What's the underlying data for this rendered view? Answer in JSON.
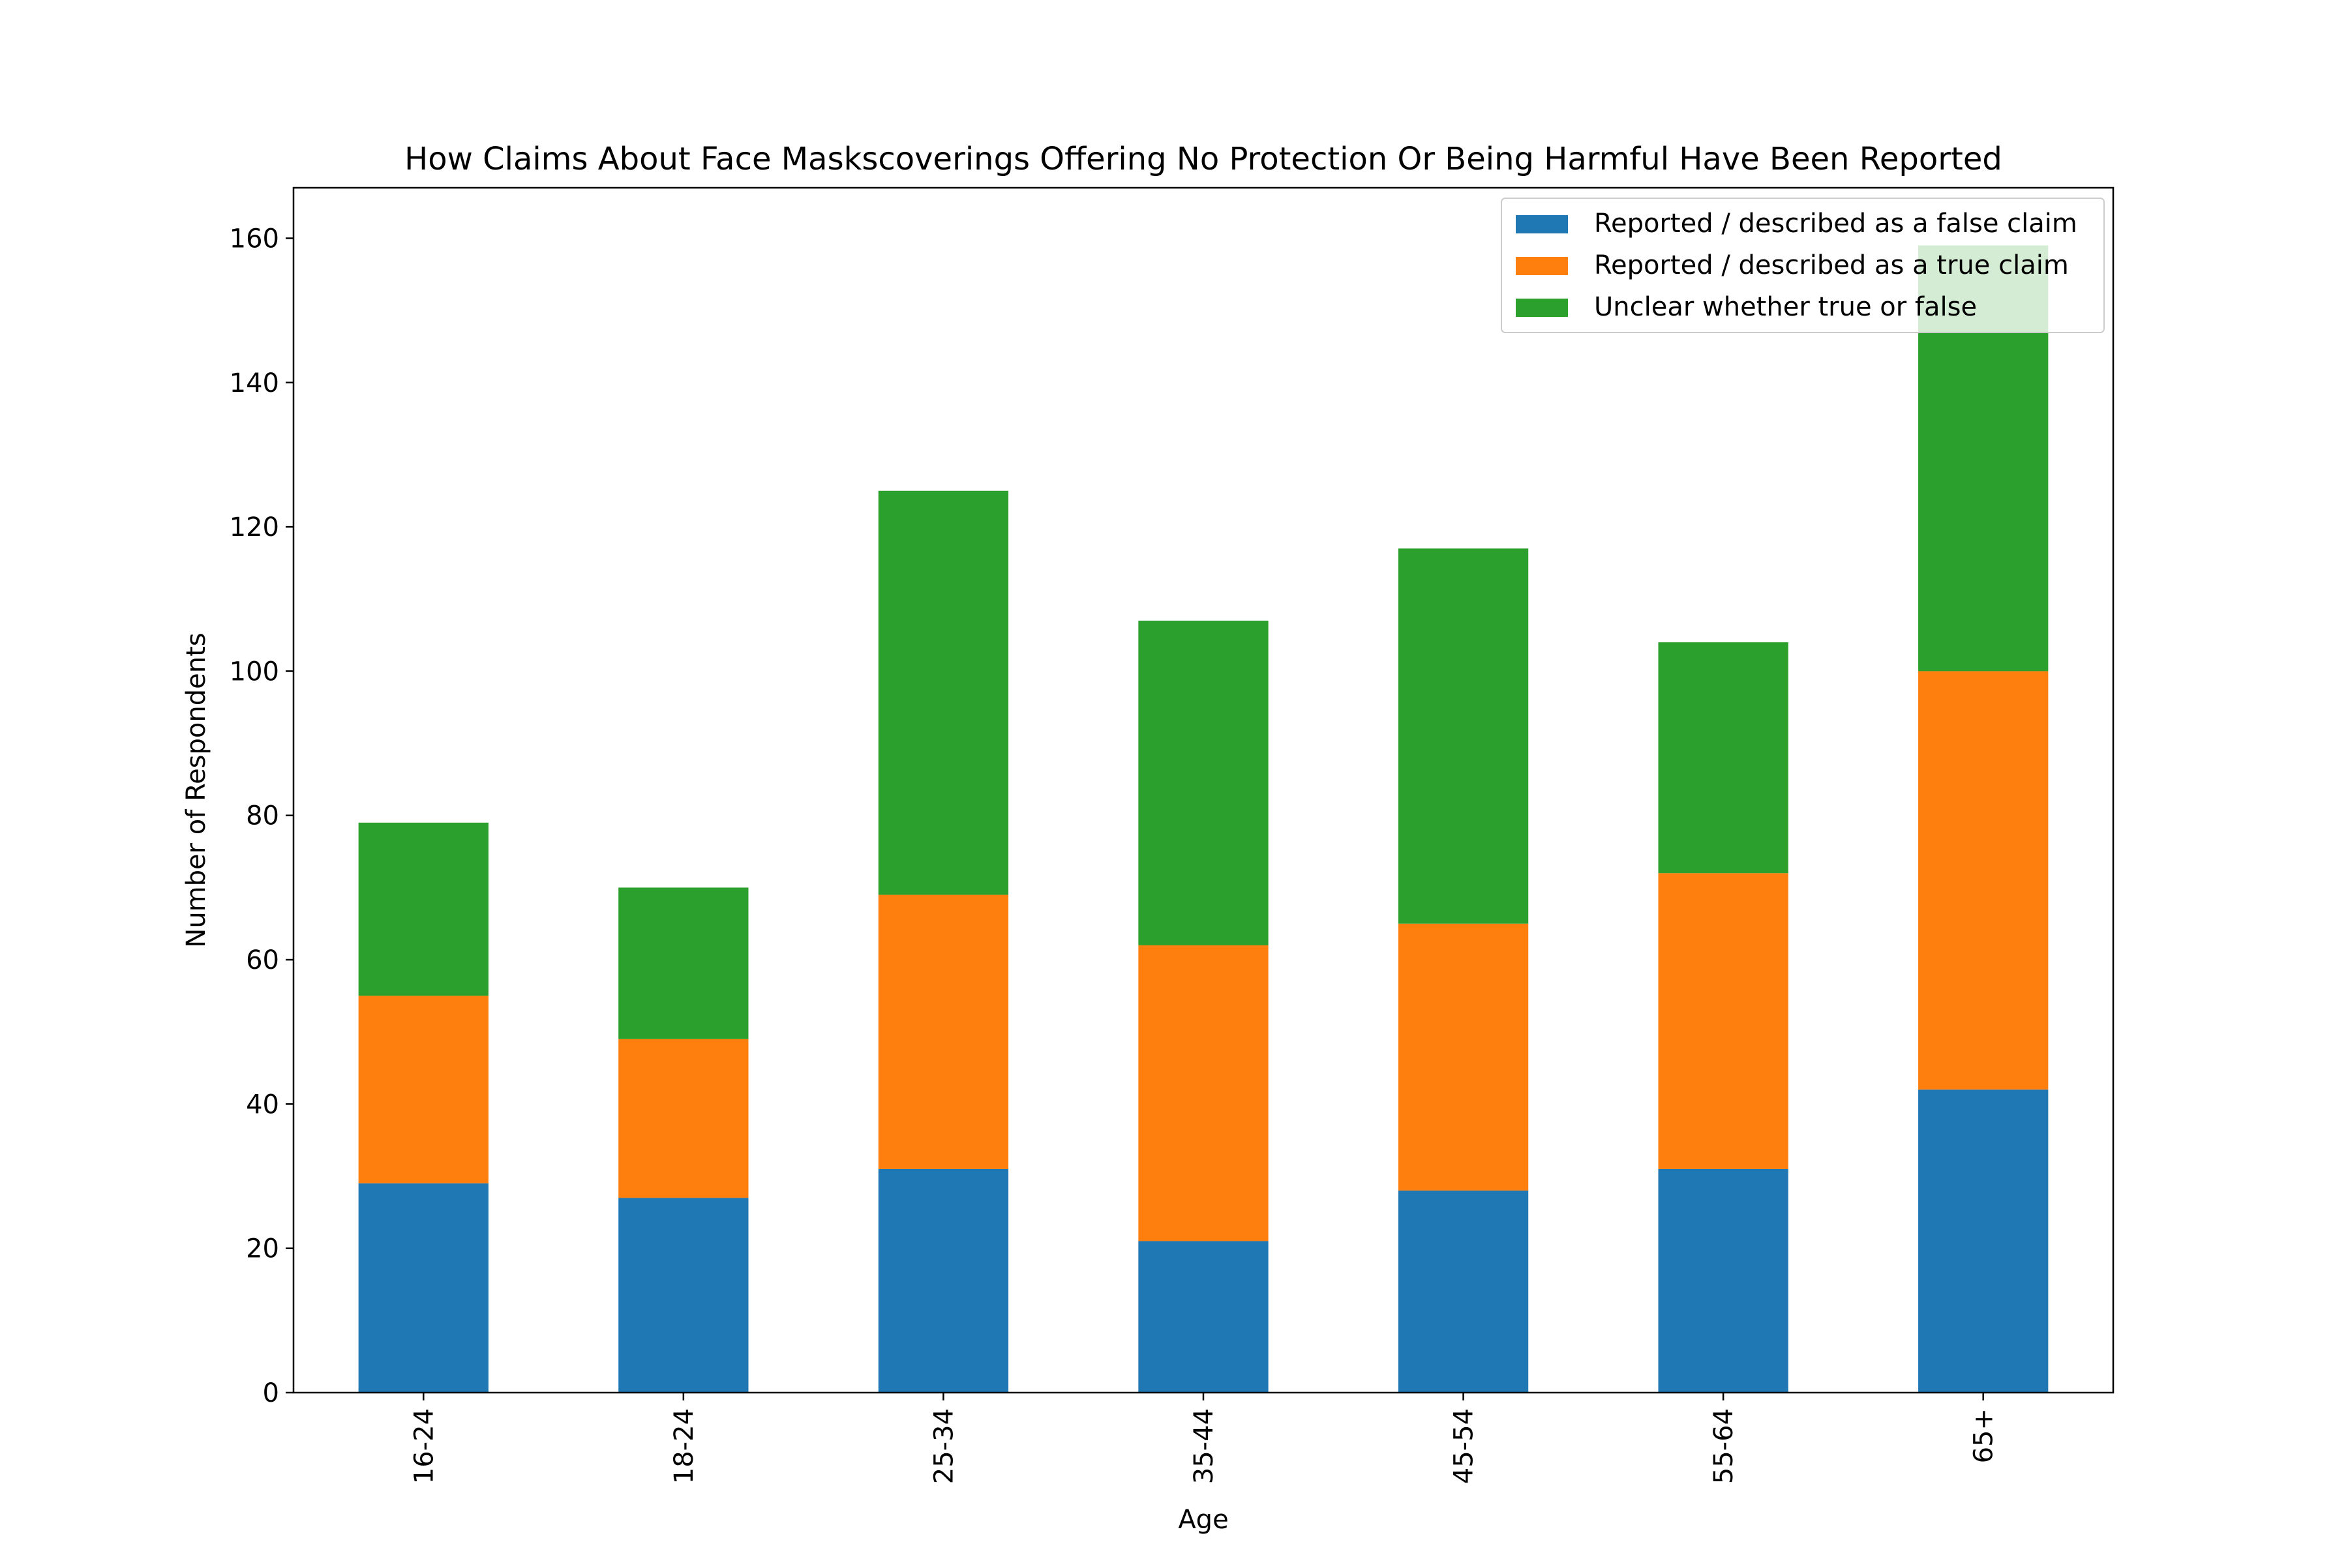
{
  "chart_data": {
    "type": "bar",
    "stacked": true,
    "title": "How Claims About Face Maskscoverings Offering No Protection Or Being Harmful Have Been Reported",
    "xlabel": "Age",
    "ylabel": "Number of Respondents",
    "categories": [
      "16-24",
      "18-24",
      "25-34",
      "35-44",
      "45-54",
      "55-64",
      "65+"
    ],
    "series": [
      {
        "name": "Reported / described as a false claim",
        "color": "#1f77b4",
        "values": [
          29,
          27,
          31,
          21,
          28,
          31,
          42
        ]
      },
      {
        "name": "Reported / described as a true claim",
        "color": "#ff7f0e",
        "values": [
          26,
          22,
          38,
          41,
          37,
          41,
          58
        ]
      },
      {
        "name": "Unclear whether true or false",
        "color": "#2ca02c",
        "values": [
          24,
          21,
          56,
          45,
          52,
          32,
          59
        ]
      }
    ],
    "ylim": [
      0,
      167
    ],
    "yticks": [
      0,
      20,
      40,
      60,
      80,
      100,
      120,
      140,
      160
    ],
    "x_tick_rotation": "vertical",
    "grid": false,
    "legend_position": "upper-right"
  }
}
